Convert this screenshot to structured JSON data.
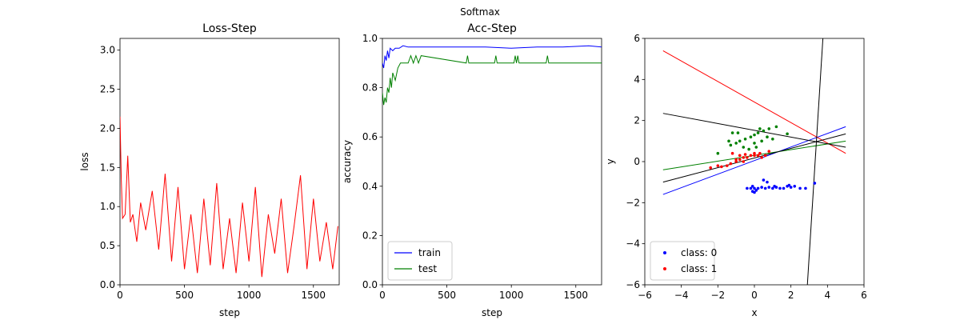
{
  "figure": {
    "suptitle": "Softmax"
  },
  "chart_data": [
    {
      "type": "line",
      "title": "Loss-Step",
      "xlabel": "step",
      "ylabel": "loss",
      "xlim": [
        0,
        1700
      ],
      "ylim": [
        0,
        3.15
      ],
      "xticks": [
        "0",
        "500",
        "1000",
        "1500"
      ],
      "yticks": [
        "0.0",
        "0.5",
        "1.0",
        "1.5",
        "2.0",
        "2.5",
        "3.0"
      ],
      "series": [
        {
          "name": "loss",
          "color": "#ff0000",
          "note": "noisy training loss, first step ~2.15 decaying to fluctuate between ~0.05 and ~1.4",
          "x": [
            0,
            10,
            20,
            40,
            60,
            80,
            100,
            130,
            160,
            200,
            250,
            300,
            350,
            400,
            450,
            500,
            550,
            600,
            650,
            700,
            750,
            800,
            850,
            900,
            950,
            1000,
            1050,
            1100,
            1150,
            1200,
            1250,
            1300,
            1350,
            1400,
            1450,
            1500,
            1550,
            1600,
            1650,
            1690
          ],
          "y": [
            2.15,
            1.35,
            0.85,
            0.9,
            1.65,
            0.8,
            0.9,
            0.55,
            1.05,
            0.7,
            1.2,
            0.45,
            1.42,
            0.3,
            1.25,
            0.2,
            0.9,
            0.15,
            1.1,
            0.25,
            1.3,
            0.2,
            0.85,
            0.15,
            1.05,
            0.3,
            1.25,
            0.1,
            0.9,
            0.4,
            1.1,
            0.15,
            0.75,
            1.4,
            0.2,
            1.1,
            0.3,
            0.8,
            0.2,
            0.75
          ]
        }
      ]
    },
    {
      "type": "line",
      "title": "Acc-Step",
      "xlabel": "step",
      "ylabel": "accuracy",
      "xlim": [
        0,
        1700
      ],
      "ylim": [
        0.0,
        1.0
      ],
      "xticks": [
        "0",
        "500",
        "1000",
        "1500"
      ],
      "yticks": [
        "0.0",
        "0.2",
        "0.4",
        "0.6",
        "0.8",
        "1.0"
      ],
      "legend": {
        "position": "lower-left",
        "entries": [
          "train",
          "test"
        ]
      },
      "series": [
        {
          "name": "train",
          "color": "#0000ff",
          "x": [
            0,
            10,
            20,
            30,
            40,
            50,
            60,
            80,
            100,
            130,
            160,
            200,
            300,
            400,
            600,
            800,
            1000,
            1200,
            1400,
            1600,
            1700
          ],
          "y": [
            0.9,
            0.88,
            0.93,
            0.91,
            0.95,
            0.92,
            0.96,
            0.95,
            0.96,
            0.96,
            0.97,
            0.965,
            0.965,
            0.965,
            0.965,
            0.965,
            0.96,
            0.965,
            0.965,
            0.97,
            0.965
          ]
        },
        {
          "name": "test",
          "color": "#008000",
          "x": [
            0,
            10,
            20,
            30,
            40,
            50,
            60,
            70,
            80,
            100,
            120,
            140,
            160,
            180,
            200,
            220,
            240,
            260,
            280,
            300,
            650,
            660,
            670,
            870,
            880,
            890,
            1020,
            1030,
            1040,
            1050,
            1060,
            1270,
            1280,
            1290,
            1700
          ],
          "y": [
            0.78,
            0.73,
            0.76,
            0.74,
            0.8,
            0.78,
            0.84,
            0.8,
            0.86,
            0.83,
            0.88,
            0.9,
            0.9,
            0.9,
            0.9,
            0.93,
            0.9,
            0.93,
            0.9,
            0.93,
            0.9,
            0.93,
            0.9,
            0.9,
            0.93,
            0.9,
            0.9,
            0.93,
            0.9,
            0.93,
            0.9,
            0.9,
            0.93,
            0.9,
            0.9
          ]
        }
      ]
    },
    {
      "type": "scatter",
      "title": "",
      "xlabel": "x",
      "ylabel": "y",
      "xlim": [
        -6,
        6
      ],
      "ylim": [
        -6,
        6
      ],
      "xticks": [
        "−6",
        "−4",
        "−2",
        "0",
        "2",
        "4",
        "6"
      ],
      "yticks": [
        "−6",
        "−4",
        "−2",
        "0",
        "2",
        "4",
        "6"
      ],
      "legend": {
        "position": "lower-left",
        "entries": [
          "class: 0",
          "class: 1"
        ]
      },
      "series": [
        {
          "name": "class: 0",
          "color": "#0000ff",
          "points": [
            [
              -0.4,
              -1.3
            ],
            [
              -0.2,
              -1.3
            ],
            [
              -0.1,
              -1.2
            ],
            [
              0.0,
              -1.3
            ],
            [
              0.1,
              -1.4
            ],
            [
              -0.1,
              -1.45
            ],
            [
              0.0,
              -1.5
            ],
            [
              0.2,
              -1.3
            ],
            [
              0.4,
              -1.25
            ],
            [
              0.6,
              -1.3
            ],
            [
              0.8,
              -1.25
            ],
            [
              1.0,
              -1.3
            ],
            [
              1.1,
              -1.2
            ],
            [
              1.2,
              -1.25
            ],
            [
              1.4,
              -1.3
            ],
            [
              1.6,
              -1.3
            ],
            [
              1.8,
              -1.2
            ],
            [
              1.9,
              -1.15
            ],
            [
              2.0,
              -1.25
            ],
            [
              2.2,
              -1.2
            ],
            [
              0.7,
              -1.0
            ],
            [
              0.5,
              -0.9
            ],
            [
              2.5,
              -1.3
            ],
            [
              2.8,
              -1.3
            ],
            [
              3.3,
              -1.05
            ]
          ]
        },
        {
          "name": "class: 1",
          "color": "#ff0000",
          "points": [
            [
              -2.4,
              -0.3
            ],
            [
              -2.0,
              -0.2
            ],
            [
              -1.8,
              -0.25
            ],
            [
              -1.5,
              -0.2
            ],
            [
              -1.3,
              -0.1
            ],
            [
              -1.0,
              0.0
            ],
            [
              -0.8,
              0.1
            ],
            [
              -0.6,
              0.0
            ],
            [
              -0.4,
              0.2
            ],
            [
              -0.2,
              0.3
            ],
            [
              0.0,
              0.3
            ],
            [
              0.2,
              0.3
            ],
            [
              0.4,
              0.2
            ],
            [
              0.6,
              0.3
            ],
            [
              -1.2,
              0.4
            ],
            [
              -0.8,
              0.3
            ],
            [
              -0.5,
              0.35
            ],
            [
              0.0,
              0.4
            ],
            [
              0.3,
              0.4
            ],
            [
              0.8,
              0.5
            ],
            [
              -1.0,
              0.1
            ],
            [
              -0.6,
              0.2
            ]
          ]
        },
        {
          "name": "class-green",
          "color": "#008000",
          "points": [
            [
              -2.0,
              0.4
            ],
            [
              -1.3,
              0.8
            ],
            [
              -1.0,
              0.9
            ],
            [
              -0.8,
              1.0
            ],
            [
              -0.5,
              1.1
            ],
            [
              -0.2,
              1.2
            ],
            [
              0.0,
              1.3
            ],
            [
              0.2,
              1.4
            ],
            [
              0.5,
              1.5
            ],
            [
              0.8,
              1.6
            ],
            [
              1.2,
              1.7
            ],
            [
              -1.4,
              1.0
            ],
            [
              -0.6,
              0.7
            ],
            [
              0.0,
              0.9
            ],
            [
              0.4,
              1.0
            ],
            [
              0.7,
              1.2
            ],
            [
              1.0,
              1.1
            ],
            [
              1.8,
              1.35
            ],
            [
              -0.9,
              1.4
            ],
            [
              -0.3,
              0.6
            ],
            [
              0.1,
              0.7
            ],
            [
              -1.2,
              1.4
            ],
            [
              0.3,
              1.6
            ]
          ]
        }
      ],
      "lines": [
        {
          "name": "blue-boundary",
          "color": "#0000ff",
          "x": [
            -5,
            5
          ],
          "y": [
            -1.6,
            1.7
          ]
        },
        {
          "name": "red-boundary",
          "color": "#ff0000",
          "x": [
            -5,
            5
          ],
          "y": [
            5.4,
            0.4
          ]
        },
        {
          "name": "green-boundary",
          "color": "#008000",
          "x": [
            -5,
            5
          ],
          "y": [
            -0.4,
            1.0
          ]
        },
        {
          "name": "black-boundary-1",
          "color": "#000000",
          "x": [
            -5,
            5
          ],
          "y": [
            -1.0,
            1.35
          ]
        },
        {
          "name": "black-boundary-2",
          "color": "#000000",
          "x": [
            -5,
            5
          ],
          "y": [
            2.35,
            0.7
          ]
        },
        {
          "name": "black-boundary-3",
          "color": "#000000",
          "x": [
            2.9,
            3.75
          ],
          "y": [
            -6.0,
            6.0
          ]
        }
      ]
    }
  ]
}
